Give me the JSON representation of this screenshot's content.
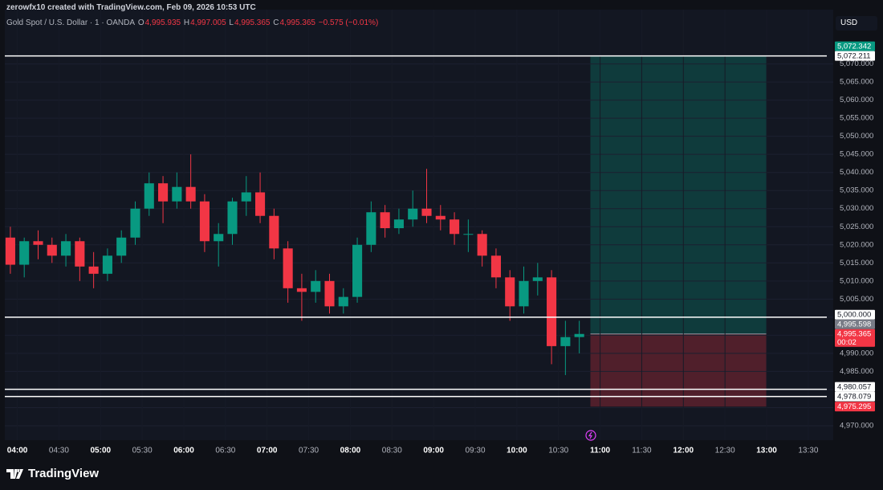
{
  "header": {
    "credit": "zerowfx10 created with TradingView.com, Feb 09, 2026 10:53 UTC",
    "symbol": "Gold Spot / U.S. Dollar · 1 · OANDA",
    "o_label": "O",
    "o": "4,995.935",
    "h_label": "H",
    "h": "4,997.005",
    "l_label": "L",
    "l": "4,995.365",
    "c_label": "C",
    "c": "4,995.365",
    "change": "−0.575 (−0.01%)",
    "currency": "USD",
    "brand": "TradingView"
  },
  "chart_data": {
    "type": "candlestick",
    "x": [
      230,
      240,
      250,
      260,
      270,
      280,
      290,
      300,
      310,
      320,
      330,
      340,
      350,
      360,
      370,
      380,
      390,
      400,
      410,
      420,
      430,
      440,
      450,
      460,
      470,
      480,
      490,
      500,
      510,
      520,
      530,
      540,
      550,
      560,
      570,
      580,
      590,
      600,
      610,
      620,
      630,
      640
    ],
    "open": [
      5022,
      5014.5,
      5021,
      5020,
      5017,
      5021,
      5014,
      5012,
      5017,
      5022,
      5030,
      5037,
      5032,
      5036,
      5032,
      5021,
      5023,
      5032,
      5034.5,
      5028,
      5019,
      5008,
      5007,
      5010,
      5003,
      5005.6,
      5020,
      5029,
      5024.6,
      5027,
      5030,
      5028,
      5027,
      5023,
      5023,
      5017,
      5011,
      5003,
      5010,
      5011,
      4992,
      4994.5
    ],
    "high": [
      5025,
      5022,
      5024,
      5022,
      5023,
      5022,
      5018,
      5019,
      5024,
      5032,
      5040,
      5039,
      5040,
      5045,
      5034,
      5026,
      5033,
      5039,
      5040,
      5030,
      5021,
      5012,
      5013,
      5012,
      5008,
      5022,
      5032,
      5031,
      5030,
      5035,
      5041,
      5031,
      5029,
      5027,
      5024,
      5019,
      5013,
      5014,
      5015,
      5013,
      4999,
      4999
    ],
    "low": [
      5012,
      5011,
      5016,
      5015,
      5014,
      5010,
      5008,
      5010,
      5015,
      5020,
      5028,
      5026,
      5030,
      5030,
      5018,
      5014,
      5020,
      5028,
      5026,
      5016,
      5004,
      4999,
      5004,
      5001,
      5001,
      5004,
      5018,
      5022,
      5023,
      5025,
      5026,
      5024,
      5020,
      5018,
      5014,
      5008,
      4999,
      5001,
      5006,
      4987,
      4984,
      4990
    ],
    "close": [
      5014.5,
      5021,
      5020,
      5017,
      5021,
      5014,
      5012,
      5017,
      5022,
      5030,
      5037,
      5032,
      5036,
      5032,
      5021,
      5023,
      5032,
      5034.5,
      5028,
      5019,
      5008,
      5007,
      5010,
      5003,
      5005.6,
      5020,
      5029,
      5024.6,
      5027,
      5030,
      5028,
      5027,
      5023,
      5023,
      5017,
      5011,
      5003,
      5010,
      5011,
      4992,
      4994.5,
      4995.365
    ],
    "up_color": "#089981",
    "down_color": "#f23645",
    "xlim": [
      231,
      828
    ],
    "xticks": [
      {
        "value": 240,
        "label": "04:00"
      },
      {
        "value": 270,
        "label": "04:30"
      },
      {
        "value": 300,
        "label": "05:00"
      },
      {
        "value": 330,
        "label": "05:30"
      },
      {
        "value": 360,
        "label": "06:00"
      },
      {
        "value": 390,
        "label": "06:30"
      },
      {
        "value": 420,
        "label": "07:00"
      },
      {
        "value": 450,
        "label": "07:30"
      },
      {
        "value": 480,
        "label": "08:00"
      },
      {
        "value": 510,
        "label": "08:30"
      },
      {
        "value": 540,
        "label": "09:00"
      },
      {
        "value": 570,
        "label": "09:30"
      },
      {
        "value": 600,
        "label": "10:00"
      },
      {
        "value": 630,
        "label": "10:30"
      },
      {
        "value": 660,
        "label": "11:00"
      },
      {
        "value": 690,
        "label": "11:30"
      },
      {
        "value": 720,
        "label": "12:00"
      },
      {
        "value": 750,
        "label": "12:30"
      },
      {
        "value": 780,
        "label": "13:00"
      },
      {
        "value": 810,
        "label": "13:30"
      }
    ],
    "ylim": [
      4966,
      5085
    ],
    "yticks": [
      {
        "value": 4970,
        "label": "4,970.000"
      },
      {
        "value": 4975,
        "label": "4,975.000"
      },
      {
        "value": 4980,
        "label": "4,980.000"
      },
      {
        "value": 4985,
        "label": "4,985.000"
      },
      {
        "value": 4990,
        "label": "4,990.000"
      },
      {
        "value": 4995,
        "label": "4,995.000"
      },
      {
        "value": 5000,
        "label": "5,000.000"
      },
      {
        "value": 5005,
        "label": "5,005.000"
      },
      {
        "value": 5010,
        "label": "5,010.000"
      },
      {
        "value": 5015,
        "label": "5,015.000"
      },
      {
        "value": 5020,
        "label": "5,020.000"
      },
      {
        "value": 5025,
        "label": "5,025.000"
      },
      {
        "value": 5030,
        "label": "5,030.000"
      },
      {
        "value": 5035,
        "label": "5,035.000"
      },
      {
        "value": 5040,
        "label": "5,040.000"
      },
      {
        "value": 5045,
        "label": "5,045.000"
      },
      {
        "value": 5050,
        "label": "5,050.000"
      },
      {
        "value": 5055,
        "label": "5,055.000"
      },
      {
        "value": 5060,
        "label": "5,060.000"
      },
      {
        "value": 5065,
        "label": "5,065.000"
      },
      {
        "value": 5070,
        "label": "5,070.000"
      }
    ],
    "grid": true,
    "price_lines": [
      {
        "value": 5072.211,
        "color": "#ffffff"
      },
      {
        "value": 5000,
        "color": "#ffffff"
      },
      {
        "value": 4980.057,
        "color": "#ffffff"
      },
      {
        "value": 4978.079,
        "color": "#ffffff"
      }
    ],
    "position": {
      "start": 653,
      "end": 780,
      "entry": 4995.365,
      "target": 5072.342,
      "stop": 4975.295,
      "target_color": "#089981",
      "stop_color": "#f23645"
    },
    "price_labels": [
      {
        "value": 5072.342,
        "label": "5,072.342",
        "bg": "#089981",
        "fg": "#ffffff"
      },
      {
        "value": 5072.211,
        "label": "5,072.211",
        "bg": "#ffffff",
        "fg": "#131722"
      },
      {
        "value": 5000,
        "label": "5,000.000",
        "bg": "#ffffff",
        "fg": "#131722"
      },
      {
        "value": 4995.598,
        "label": "4,995.598",
        "bg": "#787b86",
        "fg": "#ffffff"
      },
      {
        "value": 4995.365,
        "label": "4,995.365",
        "sublabel": "00:02",
        "bg": "#f23645",
        "fg": "#ffffff"
      },
      {
        "value": 4980.057,
        "label": "4,980.057",
        "bg": "#ffffff",
        "fg": "#131722"
      },
      {
        "value": 4978.079,
        "label": "4,978.079",
        "bg": "#ffffff",
        "fg": "#131722"
      },
      {
        "value": 4975.295,
        "label": "4,975.295",
        "bg": "#f23645",
        "fg": "#ffffff"
      }
    ]
  }
}
